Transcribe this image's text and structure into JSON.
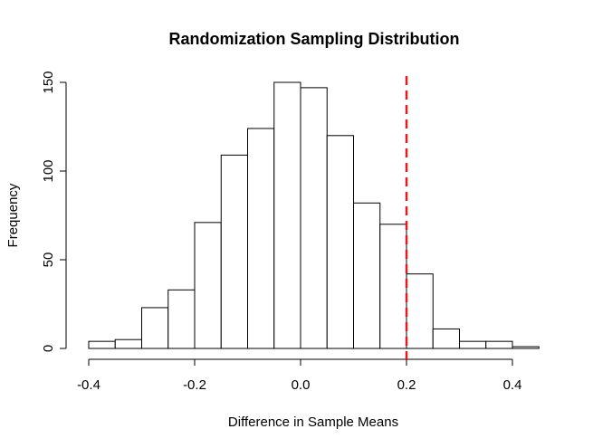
{
  "chart_data": {
    "type": "bar",
    "subtype": "histogram",
    "title": "Randomization Sampling Distribution",
    "xlabel": "Difference in Sample Means",
    "ylabel": "Frequency",
    "bin_edges": [
      -0.4,
      -0.35,
      -0.3,
      -0.25,
      -0.2,
      -0.15,
      -0.1,
      -0.05,
      0.0,
      0.05,
      0.1,
      0.15,
      0.2,
      0.25,
      0.3,
      0.35,
      0.4,
      0.45
    ],
    "values": [
      4,
      5,
      23,
      33,
      71,
      109,
      124,
      150,
      147,
      120,
      82,
      70,
      42,
      11,
      4,
      4,
      1
    ],
    "xlim": [
      -0.4,
      0.45
    ],
    "ylim": [
      0,
      150
    ],
    "x_ticks": [
      -0.4,
      -0.2,
      0.0,
      0.2,
      0.4
    ],
    "x_tick_labels": [
      "-0.4",
      "-0.2",
      "0.0",
      "0.2",
      "0.4"
    ],
    "y_ticks": [
      0,
      50,
      100,
      150
    ],
    "y_tick_labels": [
      "0",
      "50",
      "100",
      "150"
    ],
    "grid": false,
    "reference_line": {
      "x": 0.2,
      "color": "#e41a1c",
      "style": "dashed"
    }
  }
}
